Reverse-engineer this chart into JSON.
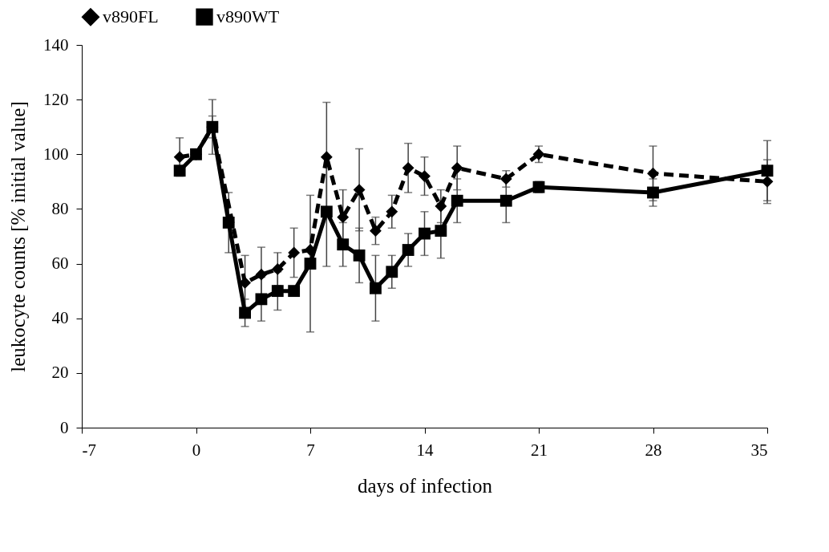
{
  "chart_data": {
    "type": "line",
    "xlabel": "days of infection",
    "ylabel": "leukocyte counts  [% initial value]",
    "x": [
      -1,
      0,
      1,
      2,
      3,
      4,
      5,
      6,
      7,
      8,
      9,
      10,
      11,
      12,
      13,
      14,
      15,
      16,
      19,
      21,
      28,
      35
    ],
    "xlim": [
      -7,
      35
    ],
    "xticks": [
      -7,
      0,
      7,
      14,
      21,
      28,
      35
    ],
    "ylim": [
      0,
      140
    ],
    "yticks": [
      0,
      20,
      40,
      60,
      80,
      100,
      120,
      140
    ],
    "grid": false,
    "legend": "top",
    "series": [
      {
        "name": "v890FL",
        "color": "#000000",
        "marker": "diamond",
        "line_style": "dashed",
        "values": [
          99,
          100,
          110,
          null,
          53,
          56,
          58,
          64,
          65,
          99,
          77,
          87,
          72,
          79,
          95,
          92,
          81,
          95,
          91,
          100,
          93,
          90
        ],
        "errors": [
          7,
          null,
          4,
          null,
          10,
          10,
          6,
          9,
          null,
          20,
          10,
          15,
          5,
          6,
          9,
          7,
          6,
          8,
          3,
          3,
          10,
          8
        ]
      },
      {
        "name": "v890WT",
        "color": "#000000",
        "marker": "square",
        "line_style": "solid",
        "values": [
          94,
          100,
          110,
          75,
          42,
          47,
          50,
          50,
          60,
          79,
          67,
          63,
          51,
          57,
          65,
          71,
          72,
          83,
          83,
          88,
          86,
          94
        ],
        "errors": [
          null,
          null,
          10,
          11,
          5,
          8,
          7,
          null,
          25,
          20,
          8,
          10,
          12,
          6,
          6,
          8,
          10,
          8,
          8,
          2,
          5,
          11
        ]
      }
    ]
  }
}
